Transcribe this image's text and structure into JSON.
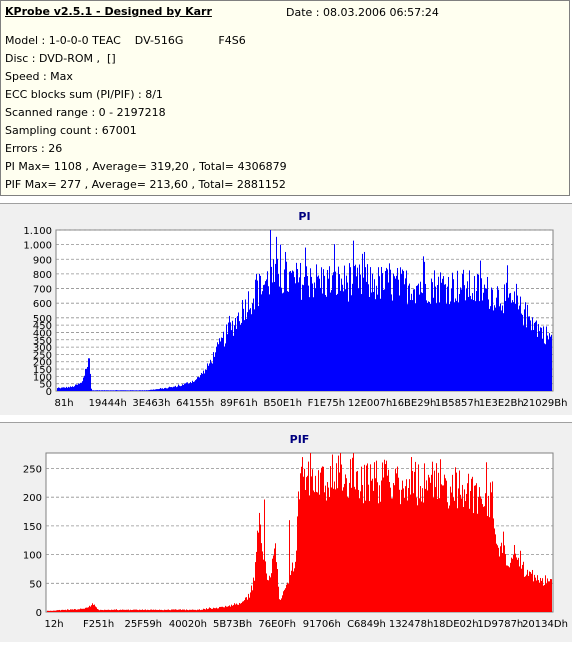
{
  "info": {
    "title": "KProbe v2.5.1 - Designed by Karr",
    "date": "Date : 08.03.2006 06:57:24",
    "lines": [
      "Model : 1-0-0-0 TEAC    DV-516G          F4S6",
      "Disc : DVD-ROM ,  []",
      "Speed : Max",
      "ECC blocks sum (PI/PIF) : 8/1",
      "Scanned range : 0 - 2197218",
      "Sampling count : 67001",
      "Errors : 26",
      "PI Max= 1108 , Average= 319,20 , Total= 4306879",
      "PIF Max= 277 , Average= 213,60 , Total= 2881152"
    ]
  },
  "chart_data": [
    {
      "type": "bar",
      "title": "PI",
      "color": "#0000ff",
      "ylim": [
        0,
        1100
      ],
      "yticks": [
        0,
        50,
        100,
        150,
        200,
        250,
        300,
        350,
        400,
        450,
        500,
        600,
        700,
        800,
        900,
        "1.000",
        "1.100"
      ],
      "ytick_values": [
        0,
        50,
        100,
        150,
        200,
        250,
        300,
        350,
        400,
        450,
        500,
        600,
        700,
        800,
        900,
        1000,
        1100
      ],
      "xticks": [
        "81h",
        "19444h",
        "3E463h",
        "64155h",
        "89F61h",
        "B50E1h",
        "F1E75h",
        "12E007h",
        "16BE29h",
        "1B5857h",
        "1E3E2Bh",
        "21029Bh"
      ],
      "grid": true,
      "profile": [
        [
          0,
          20
        ],
        [
          3,
          30
        ],
        [
          5,
          60
        ],
        [
          6,
          180
        ],
        [
          6.5,
          260
        ],
        [
          6.8,
          20
        ],
        [
          7,
          5
        ],
        [
          18,
          5
        ],
        [
          22,
          20
        ],
        [
          25,
          40
        ],
        [
          28,
          80
        ],
        [
          30,
          150
        ],
        [
          32,
          280
        ],
        [
          34,
          400
        ],
        [
          36,
          500
        ],
        [
          38,
          620
        ],
        [
          40,
          700
        ],
        [
          42,
          780
        ],
        [
          44,
          820
        ],
        [
          46,
          800
        ],
        [
          48,
          790
        ],
        [
          50,
          800
        ],
        [
          54,
          790
        ],
        [
          58,
          780
        ],
        [
          62,
          780
        ],
        [
          66,
          770
        ],
        [
          70,
          760
        ],
        [
          74,
          760
        ],
        [
          78,
          760
        ],
        [
          82,
          750
        ],
        [
          86,
          720
        ],
        [
          90,
          680
        ],
        [
          93,
          600
        ],
        [
          96,
          500
        ],
        [
          98,
          420
        ],
        [
          100,
          380
        ]
      ],
      "spikes": [
        [
          43,
          1108
        ],
        [
          40,
          400
        ],
        [
          35,
          350
        ],
        [
          32,
          150
        ],
        [
          45,
          1000
        ],
        [
          46,
          950
        ],
        [
          50,
          980
        ],
        [
          62,
          950
        ],
        [
          74,
          920
        ]
      ]
    },
    {
      "type": "bar",
      "title": "PIF",
      "color": "#ff0000",
      "ylim": [
        0,
        277
      ],
      "yticks": [
        0,
        50,
        100,
        150,
        200,
        250
      ],
      "ytick_values": [
        0,
        50,
        100,
        150,
        200,
        250
      ],
      "xticks": [
        "12h",
        "F251h",
        "25F59h",
        "40020h",
        "5B73Bh",
        "76E0Fh",
        "91706h",
        "C6849h",
        "132478h",
        "18DE02h",
        "1D9787h",
        "20134Dh"
      ],
      "grid": true,
      "profile": [
        [
          0,
          2
        ],
        [
          6,
          5
        ],
        [
          8,
          8
        ],
        [
          9,
          15
        ],
        [
          10,
          4
        ],
        [
          30,
          4
        ],
        [
          34,
          8
        ],
        [
          38,
          15
        ],
        [
          40,
          30
        ],
        [
          41,
          60
        ],
        [
          42,
          190
        ],
        [
          43,
          70
        ],
        [
          44,
          60
        ],
        [
          45,
          130
        ],
        [
          46,
          20
        ],
        [
          49,
          80
        ],
        [
          50,
          240
        ],
        [
          53,
          250
        ],
        [
          58,
          245
        ],
        [
          64,
          240
        ],
        [
          70,
          240
        ],
        [
          76,
          235
        ],
        [
          82,
          225
        ],
        [
          88,
          210
        ],
        [
          89,
          120
        ],
        [
          91,
          100
        ],
        [
          94,
          80
        ],
        [
          97,
          60
        ],
        [
          100,
          55
        ]
      ],
      "spikes": [
        [
          43,
          196
        ],
        [
          48,
          160
        ],
        [
          52,
          277
        ],
        [
          58,
          277
        ],
        [
          72,
          270
        ]
      ]
    }
  ]
}
